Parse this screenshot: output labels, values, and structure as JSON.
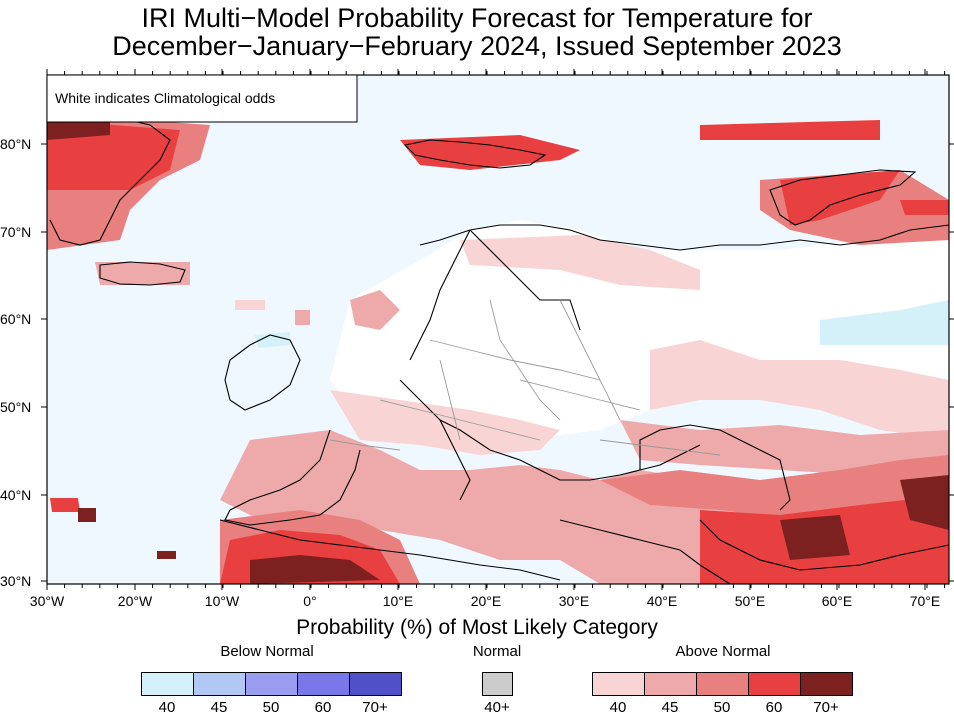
{
  "title_line1": "IRI Multi−Model Probability Forecast for Temperature for",
  "title_line2": "December−January−February 2024, Issued September 2023",
  "map_note": "White indicates Climatological odds",
  "lat_labels": [
    "80°N",
    "70°N",
    "60°N",
    "50°N",
    "40°N",
    "30°N"
  ],
  "lon_labels": [
    "30°W",
    "20°W",
    "10°W",
    "0°",
    "10°E",
    "20°E",
    "30°E",
    "40°E",
    "50°E",
    "60°E",
    "70°E"
  ],
  "legend": {
    "axis_title": "Probability (%) of Most Likely Category",
    "below_normal": {
      "label": "Below Normal",
      "ticks": [
        "40",
        "45",
        "50",
        "60",
        "70+"
      ],
      "colors": [
        "#d4f0f8",
        "#b2c8f4",
        "#9a9cf0",
        "#7a78e8",
        "#5050c8"
      ]
    },
    "normal": {
      "label": "Normal",
      "ticks": [
        "40+"
      ],
      "colors": [
        "#cccccc"
      ]
    },
    "above_normal": {
      "label": "Above Normal",
      "ticks": [
        "40",
        "45",
        "50",
        "60",
        "70+"
      ],
      "colors": [
        "#f8d4d4",
        "#eeaaaa",
        "#e88080",
        "#e84040",
        "#7c2020"
      ]
    }
  },
  "ocean_color": "#f0f8ff",
  "land_climatology_color": "#ffffff"
}
